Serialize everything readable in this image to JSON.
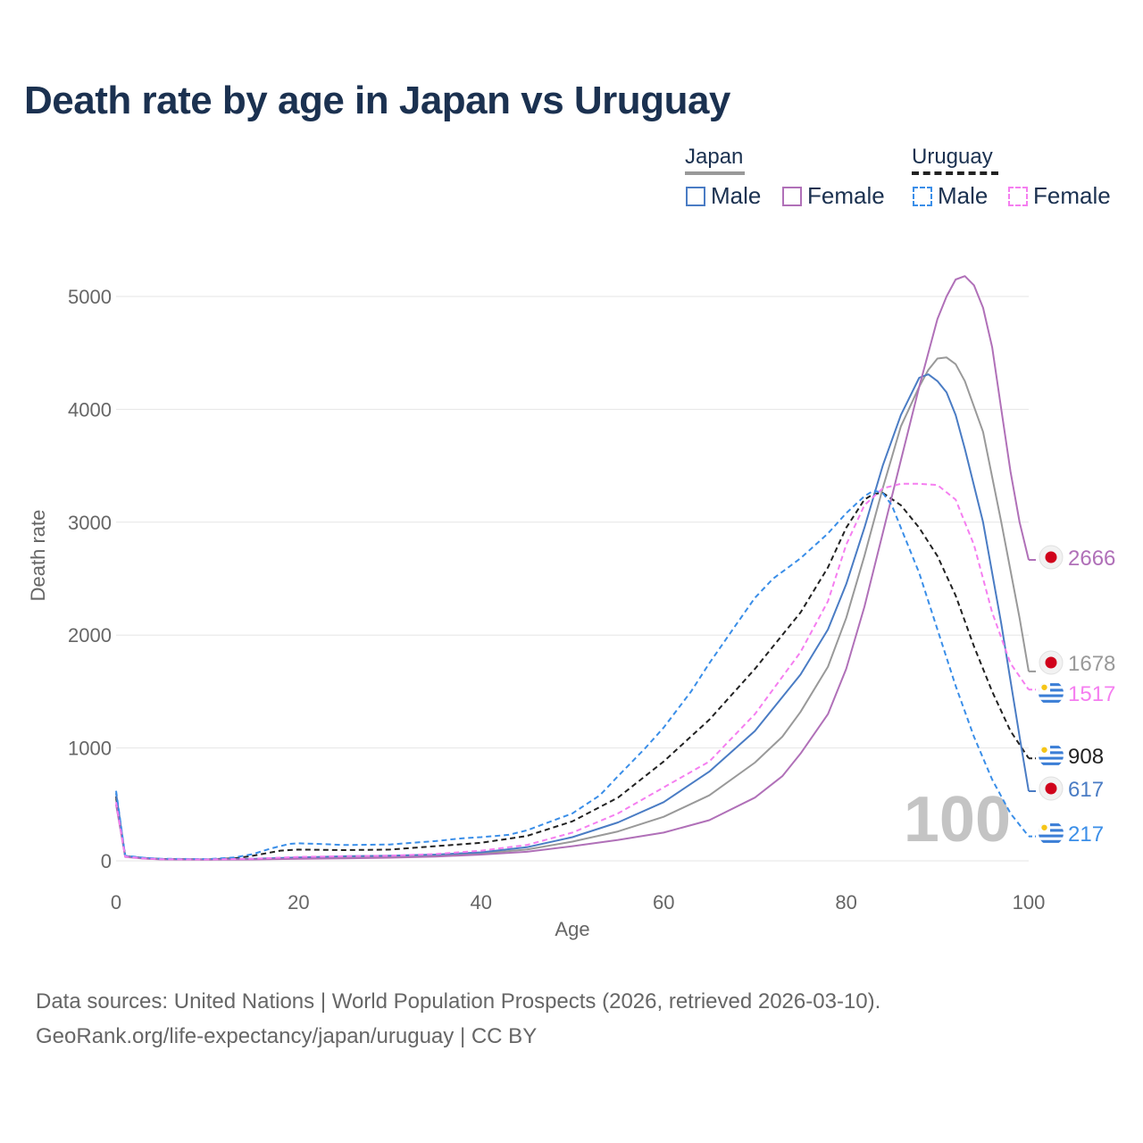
{
  "title": "Death rate by age in Japan vs Uruguay",
  "legend": {
    "japan_label": "Japan",
    "uruguay_label": "Uruguay",
    "male_label": "Male",
    "female_label": "Female"
  },
  "footer": {
    "line1": "Data sources: United Nations | World Population Prospects (2026, retrieved 2026-03-10).",
    "line2": "GeoRank.org/life-expectancy/japan/uruguay | CC BY"
  },
  "colors": {
    "japan_male": "#4a7cc4",
    "japan_female": "#b070b8",
    "japan_total": "#999999",
    "uruguay_male": "#3a8ee8",
    "uruguay_female": "#f57ef0",
    "uruguay_total": "#222222",
    "grid": "#e6e6e6",
    "axis_text": "#666666"
  },
  "chart_data": {
    "type": "line",
    "xlabel": "Age",
    "ylabel": "Death rate",
    "xlim": [
      0,
      100
    ],
    "ylim": [
      0,
      5400
    ],
    "x_ticks": [
      0,
      20,
      40,
      60,
      80,
      100
    ],
    "y_ticks": [
      0,
      1000,
      2000,
      3000,
      4000,
      5000
    ],
    "watermark": "100",
    "series": [
      {
        "name": "Japan Male",
        "key": "japan_male",
        "style": "solid",
        "end_label": "617",
        "flag": "japan",
        "points": [
          [
            0,
            600
          ],
          [
            1,
            40
          ],
          [
            3,
            25
          ],
          [
            5,
            15
          ],
          [
            10,
            12
          ],
          [
            15,
            18
          ],
          [
            20,
            30
          ],
          [
            25,
            40
          ],
          [
            30,
            45
          ],
          [
            35,
            55
          ],
          [
            40,
            75
          ],
          [
            45,
            120
          ],
          [
            50,
            210
          ],
          [
            55,
            340
          ],
          [
            60,
            520
          ],
          [
            65,
            790
          ],
          [
            70,
            1150
          ],
          [
            75,
            1650
          ],
          [
            78,
            2050
          ],
          [
            80,
            2450
          ],
          [
            82,
            2950
          ],
          [
            84,
            3500
          ],
          [
            86,
            3950
          ],
          [
            88,
            4280
          ],
          [
            89,
            4310
          ],
          [
            90,
            4250
          ],
          [
            91,
            4150
          ],
          [
            92,
            3950
          ],
          [
            93,
            3650
          ],
          [
            95,
            3000
          ],
          [
            97,
            2100
          ],
          [
            99,
            1100
          ],
          [
            100,
            617
          ]
        ]
      },
      {
        "name": "Japan Female",
        "key": "japan_female",
        "style": "solid",
        "end_label": "2666",
        "flag": "japan",
        "points": [
          [
            0,
            500
          ],
          [
            1,
            35
          ],
          [
            3,
            20
          ],
          [
            5,
            12
          ],
          [
            10,
            10
          ],
          [
            15,
            12
          ],
          [
            20,
            18
          ],
          [
            25,
            22
          ],
          [
            30,
            28
          ],
          [
            35,
            38
          ],
          [
            40,
            55
          ],
          [
            45,
            80
          ],
          [
            50,
            130
          ],
          [
            55,
            185
          ],
          [
            60,
            250
          ],
          [
            65,
            360
          ],
          [
            70,
            560
          ],
          [
            73,
            750
          ],
          [
            75,
            950
          ],
          [
            78,
            1300
          ],
          [
            80,
            1700
          ],
          [
            82,
            2250
          ],
          [
            84,
            2900
          ],
          [
            86,
            3550
          ],
          [
            88,
            4200
          ],
          [
            89,
            4500
          ],
          [
            90,
            4800
          ],
          [
            91,
            5000
          ],
          [
            92,
            5150
          ],
          [
            93,
            5180
          ],
          [
            94,
            5100
          ],
          [
            95,
            4900
          ],
          [
            96,
            4550
          ],
          [
            97,
            4000
          ],
          [
            98,
            3450
          ],
          [
            99,
            3000
          ],
          [
            100,
            2666
          ]
        ]
      },
      {
        "name": "Japan Total",
        "key": "japan_total",
        "style": "solid",
        "end_label": "1678",
        "flag": "japan",
        "points": [
          [
            0,
            550
          ],
          [
            1,
            38
          ],
          [
            3,
            22
          ],
          [
            5,
            14
          ],
          [
            10,
            11
          ],
          [
            15,
            15
          ],
          [
            20,
            24
          ],
          [
            25,
            31
          ],
          [
            30,
            37
          ],
          [
            35,
            46
          ],
          [
            40,
            65
          ],
          [
            45,
            100
          ],
          [
            50,
            170
          ],
          [
            55,
            260
          ],
          [
            60,
            390
          ],
          [
            65,
            580
          ],
          [
            70,
            870
          ],
          [
            73,
            1100
          ],
          [
            75,
            1320
          ],
          [
            78,
            1720
          ],
          [
            80,
            2150
          ],
          [
            82,
            2700
          ],
          [
            84,
            3300
          ],
          [
            86,
            3850
          ],
          [
            88,
            4200
          ],
          [
            89,
            4350
          ],
          [
            90,
            4450
          ],
          [
            91,
            4460
          ],
          [
            92,
            4400
          ],
          [
            93,
            4250
          ],
          [
            95,
            3800
          ],
          [
            97,
            3000
          ],
          [
            99,
            2150
          ],
          [
            100,
            1678
          ]
        ]
      },
      {
        "name": "Uruguay Male",
        "key": "uruguay_male",
        "style": "dashed",
        "end_label": "217",
        "flag": "uruguay",
        "points": [
          [
            0,
            620
          ],
          [
            1,
            45
          ],
          [
            3,
            28
          ],
          [
            5,
            18
          ],
          [
            10,
            15
          ],
          [
            13,
            30
          ],
          [
            15,
            60
          ],
          [
            17,
            110
          ],
          [
            19,
            150
          ],
          [
            20,
            155
          ],
          [
            22,
            150
          ],
          [
            25,
            140
          ],
          [
            30,
            145
          ],
          [
            35,
            175
          ],
          [
            38,
            200
          ],
          [
            40,
            210
          ],
          [
            43,
            230
          ],
          [
            45,
            270
          ],
          [
            50,
            420
          ],
          [
            53,
            580
          ],
          [
            55,
            750
          ],
          [
            58,
            1000
          ],
          [
            60,
            1180
          ],
          [
            63,
            1500
          ],
          [
            65,
            1750
          ],
          [
            68,
            2100
          ],
          [
            70,
            2330
          ],
          [
            72,
            2500
          ],
          [
            75,
            2680
          ],
          [
            78,
            2900
          ],
          [
            80,
            3080
          ],
          [
            82,
            3230
          ],
          [
            83,
            3280
          ],
          [
            84,
            3260
          ],
          [
            85,
            3150
          ],
          [
            86,
            2950
          ],
          [
            88,
            2550
          ],
          [
            90,
            2050
          ],
          [
            92,
            1550
          ],
          [
            94,
            1100
          ],
          [
            96,
            720
          ],
          [
            98,
            420
          ],
          [
            100,
            217
          ]
        ]
      },
      {
        "name": "Uruguay Female",
        "key": "uruguay_female",
        "style": "dashed",
        "end_label": "1517",
        "flag": "uruguay",
        "points": [
          [
            0,
            520
          ],
          [
            1,
            38
          ],
          [
            3,
            22
          ],
          [
            5,
            14
          ],
          [
            10,
            12
          ],
          [
            15,
            18
          ],
          [
            20,
            35
          ],
          [
            25,
            40
          ],
          [
            30,
            45
          ],
          [
            35,
            60
          ],
          [
            40,
            90
          ],
          [
            45,
            140
          ],
          [
            50,
            250
          ],
          [
            55,
            420
          ],
          [
            60,
            650
          ],
          [
            65,
            880
          ],
          [
            70,
            1300
          ],
          [
            75,
            1850
          ],
          [
            78,
            2300
          ],
          [
            80,
            2800
          ],
          [
            82,
            3150
          ],
          [
            84,
            3300
          ],
          [
            86,
            3340
          ],
          [
            88,
            3340
          ],
          [
            90,
            3330
          ],
          [
            92,
            3200
          ],
          [
            94,
            2800
          ],
          [
            96,
            2200
          ],
          [
            98,
            1750
          ],
          [
            100,
            1517
          ]
        ]
      },
      {
        "name": "Uruguay Total",
        "key": "uruguay_total",
        "style": "dashed",
        "end_label": "908",
        "flag": "uruguay",
        "points": [
          [
            0,
            570
          ],
          [
            1,
            42
          ],
          [
            3,
            25
          ],
          [
            5,
            16
          ],
          [
            10,
            13
          ],
          [
            13,
            22
          ],
          [
            15,
            45
          ],
          [
            18,
            90
          ],
          [
            20,
            100
          ],
          [
            25,
            95
          ],
          [
            30,
            100
          ],
          [
            35,
            130
          ],
          [
            40,
            160
          ],
          [
            45,
            220
          ],
          [
            50,
            350
          ],
          [
            55,
            560
          ],
          [
            60,
            880
          ],
          [
            65,
            1250
          ],
          [
            70,
            1700
          ],
          [
            72,
            1900
          ],
          [
            75,
            2200
          ],
          [
            78,
            2600
          ],
          [
            80,
            2950
          ],
          [
            82,
            3200
          ],
          [
            83,
            3250
          ],
          [
            84,
            3260
          ],
          [
            86,
            3150
          ],
          [
            88,
            2950
          ],
          [
            90,
            2700
          ],
          [
            92,
            2350
          ],
          [
            94,
            1900
          ],
          [
            96,
            1500
          ],
          [
            98,
            1150
          ],
          [
            100,
            908
          ]
        ]
      }
    ]
  }
}
